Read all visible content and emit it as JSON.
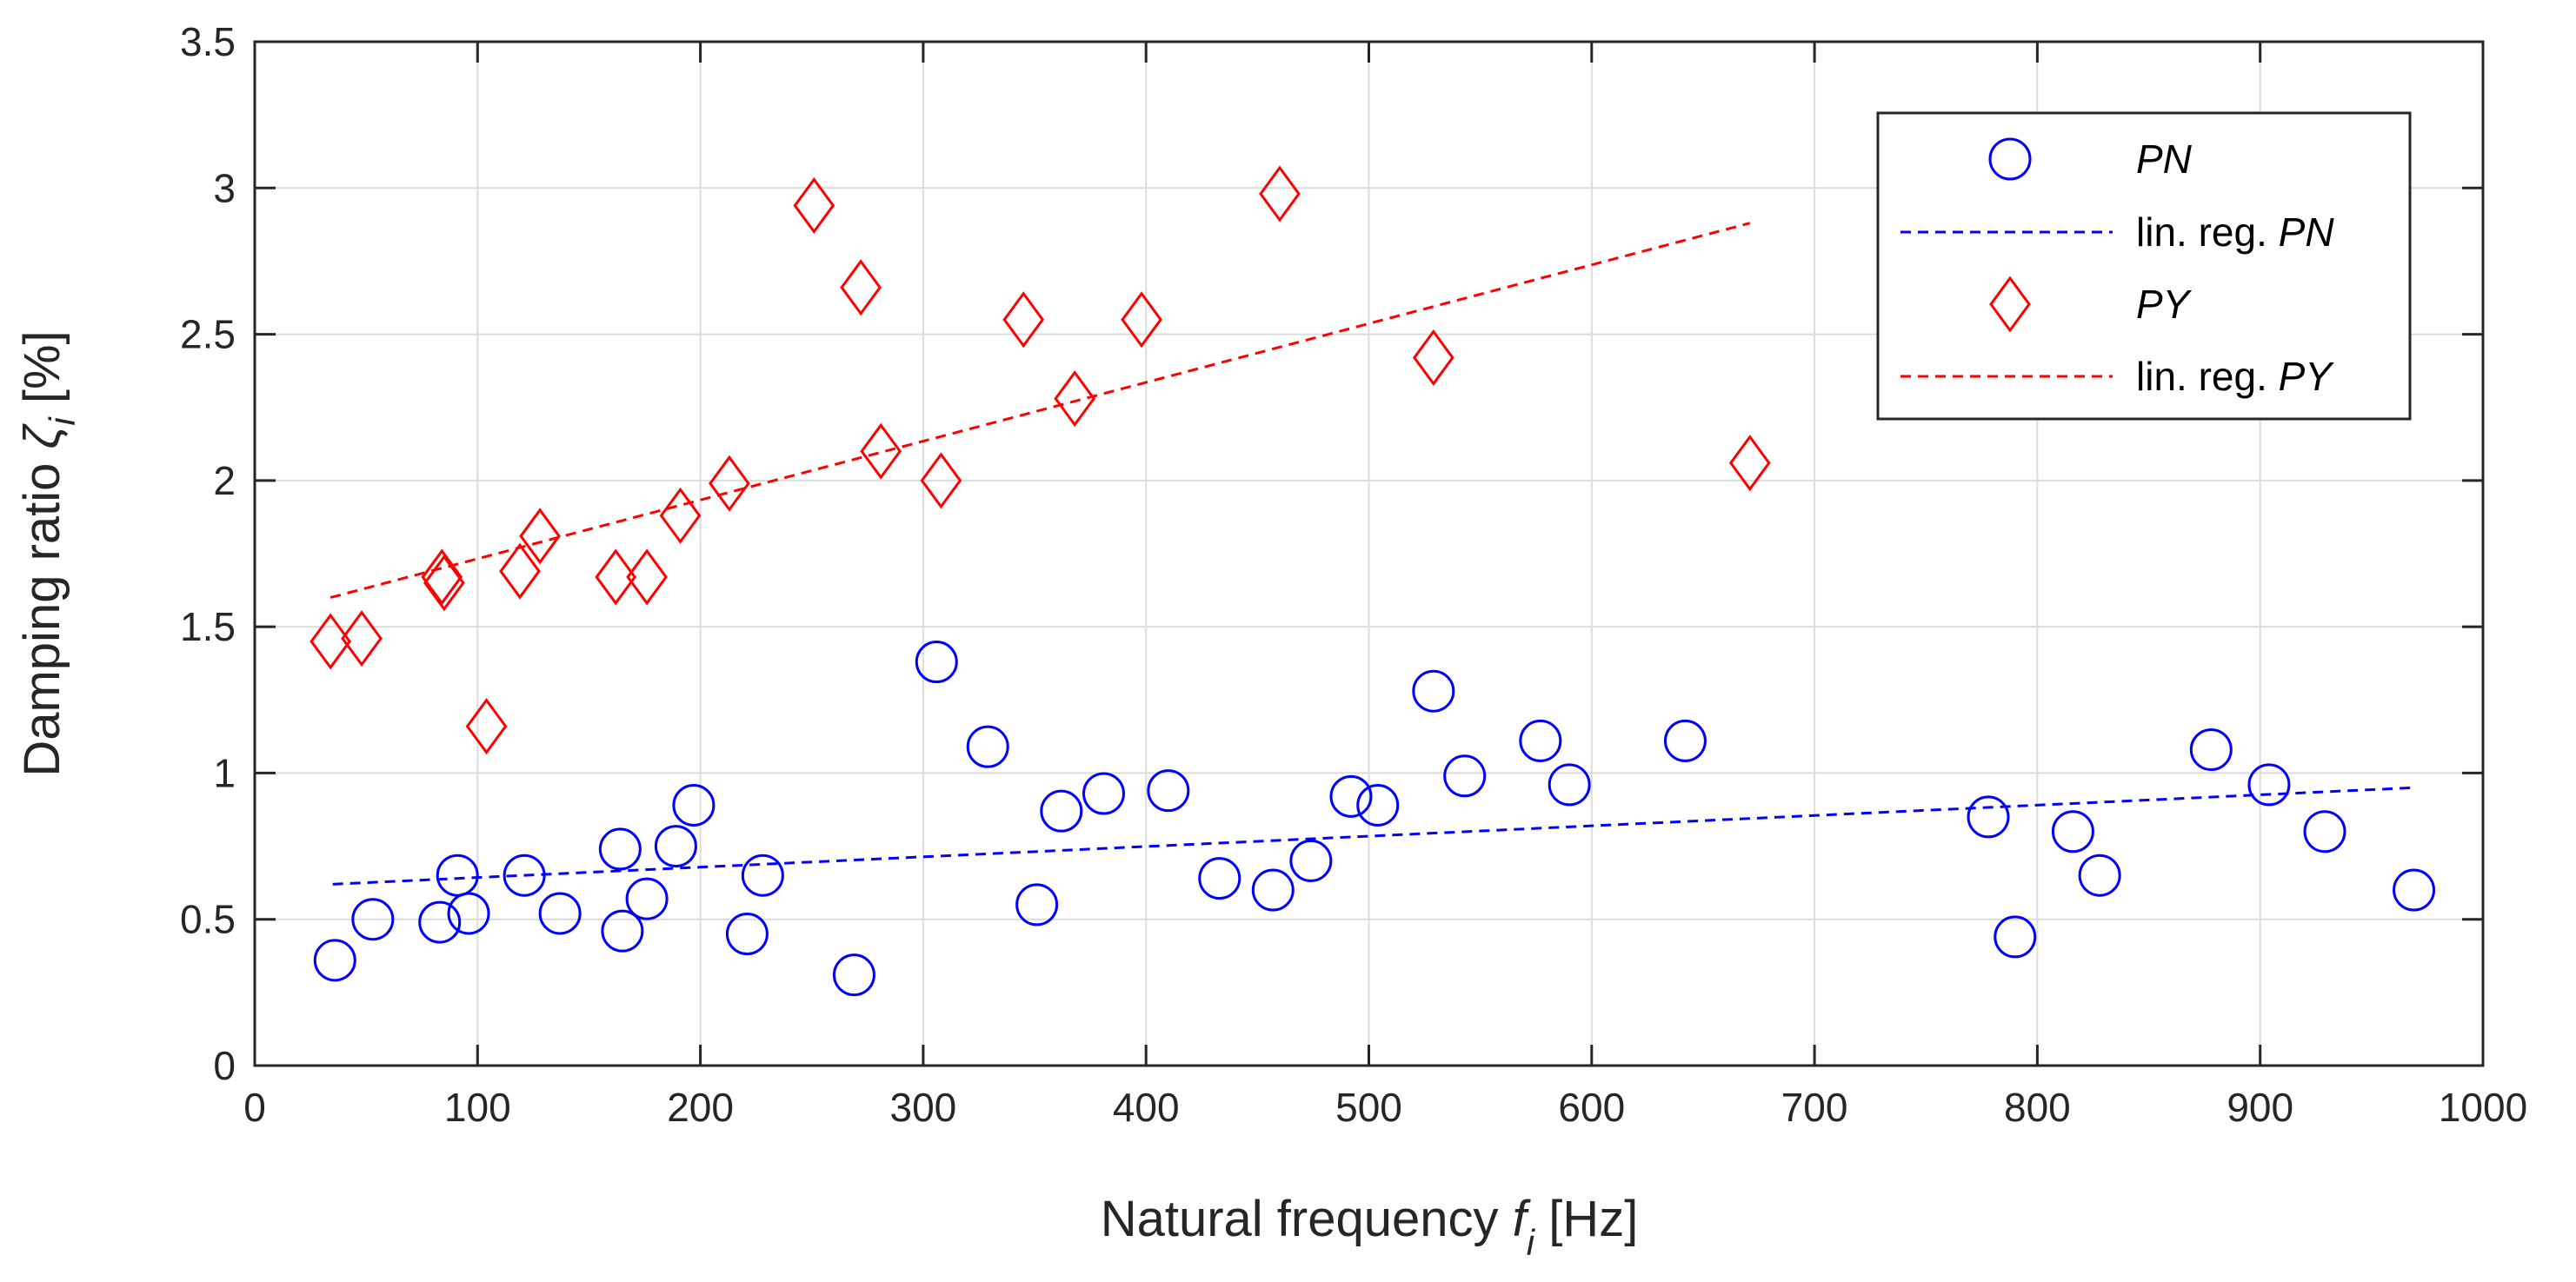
{
  "chart_data": {
    "type": "scatter",
    "xlabel_prefix": "Natural frequency ",
    "xlabel_symbol": "f",
    "xlabel_subscript": "i",
    "xlabel_suffix": " [Hz]",
    "ylabel_prefix": "Damping ratio ",
    "ylabel_symbol": "ζ",
    "ylabel_subscript": "i",
    "ylabel_suffix": " [%]",
    "xlim": [
      0,
      1000
    ],
    "ylim": [
      0,
      3.5
    ],
    "xticks": [
      0,
      100,
      200,
      300,
      400,
      500,
      600,
      700,
      800,
      900,
      1000
    ],
    "yticks": [
      0,
      0.5,
      1,
      1.5,
      2,
      2.5,
      3,
      3.5
    ],
    "xtick_labels": [
      "0",
      "100",
      "200",
      "300",
      "400",
      "500",
      "600",
      "700",
      "800",
      "900",
      "1000"
    ],
    "ytick_labels": [
      "0",
      "0.5",
      "1",
      "1.5",
      "2",
      "2.5",
      "3",
      "3.5"
    ],
    "grid": true,
    "legend_position": "top-right",
    "series": [
      {
        "name": "PN",
        "marker": "circle",
        "color": "#0000ff",
        "points": [
          [
            36,
            0.36
          ],
          [
            53,
            0.5
          ],
          [
            83,
            0.49
          ],
          [
            91,
            0.65
          ],
          [
            96,
            0.52
          ],
          [
            121,
            0.65
          ],
          [
            137,
            0.52
          ],
          [
            164,
            0.74
          ],
          [
            165,
            0.46
          ],
          [
            176,
            0.57
          ],
          [
            189,
            0.75
          ],
          [
            197,
            0.89
          ],
          [
            221,
            0.45
          ],
          [
            228,
            0.65
          ],
          [
            269,
            0.31
          ],
          [
            306,
            1.38
          ],
          [
            329,
            1.09
          ],
          [
            351,
            0.55
          ],
          [
            362,
            0.87
          ],
          [
            381,
            0.93
          ],
          [
            410,
            0.94
          ],
          [
            433,
            0.64
          ],
          [
            457,
            0.6
          ],
          [
            474,
            0.7
          ],
          [
            492,
            0.92
          ],
          [
            504,
            0.89
          ],
          [
            529,
            1.28
          ],
          [
            543,
            0.99
          ],
          [
            577,
            1.11
          ],
          [
            590,
            0.96
          ],
          [
            642,
            1.11
          ],
          [
            778,
            0.85
          ],
          [
            790,
            0.44
          ],
          [
            816,
            0.8
          ],
          [
            828,
            0.65
          ],
          [
            878,
            1.08
          ],
          [
            904,
            0.96
          ],
          [
            929,
            0.8
          ],
          [
            969,
            0.6
          ]
        ]
      },
      {
        "name": "lin. reg. PN",
        "legend_prefix": "lin. reg. ",
        "legend_italic": "PN",
        "line": "dashed",
        "color": "#0000ff",
        "points": [
          [
            35,
            0.62
          ],
          [
            969,
            0.95
          ]
        ]
      },
      {
        "name": "PY",
        "marker": "diamond",
        "color": "#ff0000",
        "points": [
          [
            34,
            1.45
          ],
          [
            48,
            1.46
          ],
          [
            84,
            1.67
          ],
          [
            85,
            1.65
          ],
          [
            104,
            1.16
          ],
          [
            119,
            1.69
          ],
          [
            128,
            1.81
          ],
          [
            162,
            1.67
          ],
          [
            176,
            1.67
          ],
          [
            191,
            1.88
          ],
          [
            213,
            1.99
          ],
          [
            251,
            2.94
          ],
          [
            272,
            2.66
          ],
          [
            281,
            2.1
          ],
          [
            308,
            2.0
          ],
          [
            345,
            2.55
          ],
          [
            368,
            2.28
          ],
          [
            398,
            2.55
          ],
          [
            460,
            2.98
          ],
          [
            529,
            2.42
          ],
          [
            671,
            2.06
          ]
        ]
      },
      {
        "name": "lin. reg. PY",
        "legend_prefix": "lin. reg. ",
        "legend_italic": "PY",
        "line": "dashed",
        "color": "#ff0000",
        "points": [
          [
            34,
            1.6
          ],
          [
            671,
            2.88
          ]
        ]
      }
    ]
  }
}
